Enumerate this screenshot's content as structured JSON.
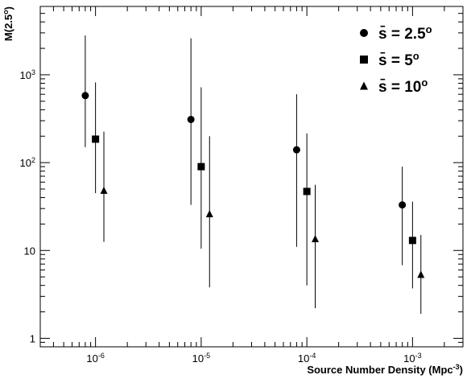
{
  "chart_data": {
    "type": "scatter",
    "title": "",
    "xlabel": "Source Number Density (Mpc",
    "xlabel_sup": "-3",
    "xlabel_close": ")",
    "ylabel": "M(2.5",
    "ylabel_sup": "o",
    "ylabel_close": ")",
    "x_scale": "log",
    "y_scale": "log",
    "xlim": [
      3e-07,
      0.003
    ],
    "ylim": [
      0.8,
      6000
    ],
    "grid": false,
    "legend_position": "top-right",
    "x_ticks": [
      {
        "base": "10",
        "exp": "-6"
      },
      {
        "base": "10",
        "exp": "-5"
      },
      {
        "base": "10",
        "exp": "-4"
      },
      {
        "base": "10",
        "exp": "-3"
      }
    ],
    "y_ticks": [
      {
        "value": 1,
        "base": "1",
        "exp": ""
      },
      {
        "value": 10,
        "base": "10",
        "exp": ""
      },
      {
        "value": 100,
        "base": "10",
        "exp": "2"
      },
      {
        "value": 1000,
        "base": "10",
        "exp": "3"
      }
    ],
    "series": [
      {
        "name": "s̄ = 2.5",
        "name_sup": "o",
        "marker": "circle",
        "points": [
          {
            "x": 8e-07,
            "y": 580,
            "ylo": 150,
            "yhi": 2800
          },
          {
            "x": 8e-06,
            "y": 310,
            "ylo": 33,
            "yhi": 2600
          },
          {
            "x": 8e-05,
            "y": 140,
            "ylo": 11,
            "yhi": 600
          },
          {
            "x": 0.0008,
            "y": 33,
            "ylo": 6.8,
            "yhi": 90
          }
        ]
      },
      {
        "name": "s̄ = 5",
        "name_sup": "o",
        "marker": "square",
        "points": [
          {
            "x": 1e-06,
            "y": 185,
            "ylo": 45,
            "yhi": 820
          },
          {
            "x": 1e-05,
            "y": 90,
            "ylo": 10.5,
            "yhi": 720
          },
          {
            "x": 0.0001,
            "y": 47,
            "ylo": 4,
            "yhi": 215
          },
          {
            "x": 0.001,
            "y": 13,
            "ylo": 3.7,
            "yhi": 36
          }
        ]
      },
      {
        "name": "s̄ = 10",
        "name_sup": "o",
        "marker": "triangle",
        "points": [
          {
            "x": 1.2e-06,
            "y": 48,
            "ylo": 12.5,
            "yhi": 225
          },
          {
            "x": 1.2e-05,
            "y": 26,
            "ylo": 3.8,
            "yhi": 200
          },
          {
            "x": 0.00012,
            "y": 13.5,
            "ylo": 2.2,
            "yhi": 56
          },
          {
            "x": 0.0012,
            "y": 5.3,
            "ylo": 1.9,
            "yhi": 15
          }
        ]
      }
    ]
  }
}
